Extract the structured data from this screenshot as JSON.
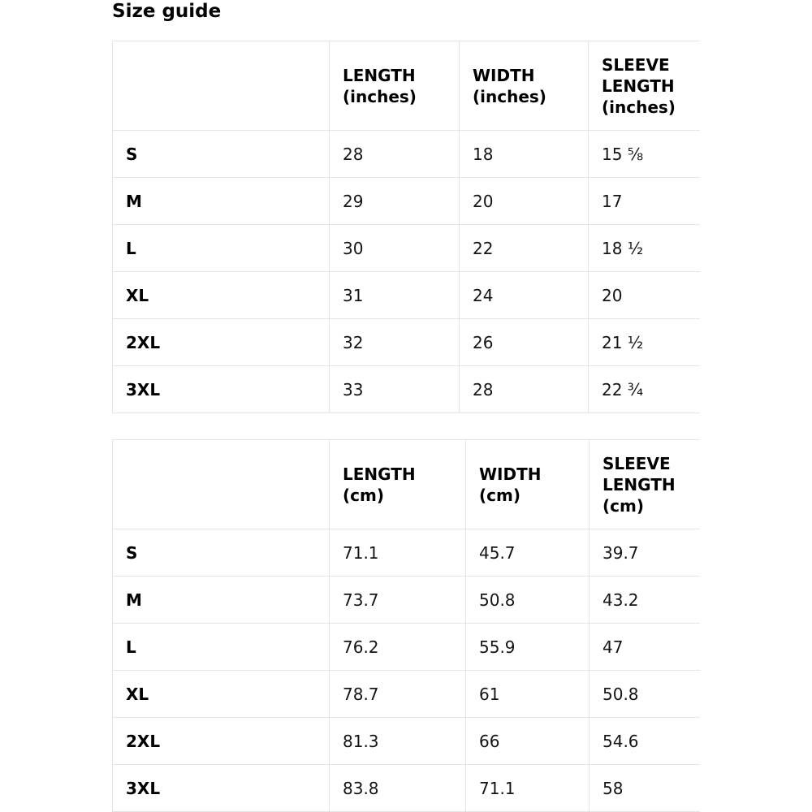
{
  "page": {
    "title": "Size guide"
  },
  "colors": {
    "background": "#ffffff",
    "border": "#e5e5e5",
    "text": "#141414",
    "heading_text": "#000000"
  },
  "tables": [
    {
      "id": "inches",
      "headers": [
        {
          "label": "",
          "unit": ""
        },
        {
          "label": "LENGTH",
          "unit": "(inches)"
        },
        {
          "label": "WIDTH",
          "unit": "(inches)"
        },
        {
          "label": "SLEEVE LENGTH",
          "unit": "(inches)"
        }
      ],
      "rows": [
        {
          "size": "S",
          "values": [
            "28",
            "18",
            "15 ⅝"
          ]
        },
        {
          "size": "M",
          "values": [
            "29",
            "20",
            "17"
          ]
        },
        {
          "size": "L",
          "values": [
            "30",
            "22",
            "18 ½"
          ]
        },
        {
          "size": "XL",
          "values": [
            "31",
            "24",
            "20"
          ]
        },
        {
          "size": "2XL",
          "values": [
            "32",
            "26",
            "21 ½"
          ]
        },
        {
          "size": "3XL",
          "values": [
            "33",
            "28",
            "22 ¾"
          ]
        }
      ]
    },
    {
      "id": "cm",
      "headers": [
        {
          "label": "",
          "unit": ""
        },
        {
          "label": "LENGTH",
          "unit": "(cm)"
        },
        {
          "label": "WIDTH",
          "unit": "(cm)"
        },
        {
          "label": "SLEEVE LENGTH",
          "unit": "(cm)"
        }
      ],
      "rows": [
        {
          "size": "S",
          "values": [
            "71.1",
            "45.7",
            "39.7"
          ]
        },
        {
          "size": "M",
          "values": [
            "73.7",
            "50.8",
            "43.2"
          ]
        },
        {
          "size": "L",
          "values": [
            "76.2",
            "55.9",
            "47"
          ]
        },
        {
          "size": "XL",
          "values": [
            "78.7",
            "61",
            "50.8"
          ]
        },
        {
          "size": "2XL",
          "values": [
            "81.3",
            "66",
            "54.6"
          ]
        },
        {
          "size": "3XL",
          "values": [
            "83.8",
            "71.1",
            "58"
          ]
        }
      ]
    }
  ]
}
